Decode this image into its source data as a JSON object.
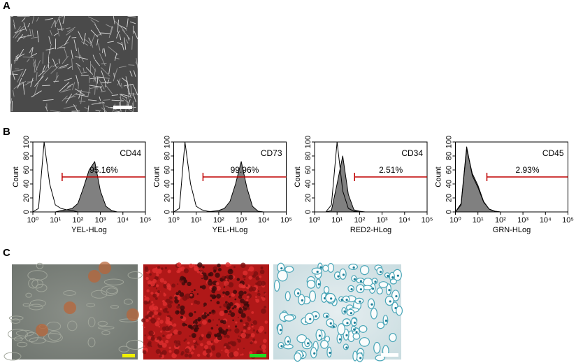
{
  "panel_labels": [
    "A",
    "B",
    "C"
  ],
  "chart_data": [
    {
      "type": "area",
      "label": "CD44",
      "xlabel": "YEL-HLog",
      "ylabel": "Count",
      "xscale": "log",
      "xlim": [
        1,
        100000
      ],
      "ylim": [
        0,
        100
      ],
      "xticks": [
        {
          "value": 1,
          "label": "10⁰"
        },
        {
          "value": 10,
          "label": "10¹"
        },
        {
          "value": 100,
          "label": "10²"
        },
        {
          "value": 1000,
          "label": "10³"
        },
        {
          "value": 10000,
          "label": "10⁴"
        },
        {
          "value": 100000,
          "label": "10⁵"
        }
      ],
      "yticks": [
        0,
        20,
        40,
        60,
        80,
        100
      ],
      "x": [
        1,
        1.78,
        3.16,
        5.62,
        10,
        17.8,
        31.6,
        56.2,
        100,
        178,
        316,
        562,
        1000,
        1778,
        3162,
        5623,
        10000,
        17800,
        31600,
        56200,
        100000
      ],
      "series": [
        {
          "color": "#808080",
          "values": [
            0,
            0,
            0,
            0,
            0,
            2,
            3,
            5,
            12,
            35,
            60,
            72,
            30,
            8,
            2,
            0,
            0,
            0,
            0,
            0,
            0
          ]
        },
        {
          "color": "none",
          "values": [
            0,
            5,
            100,
            40,
            10,
            5,
            3,
            2,
            0,
            0,
            0,
            0,
            0,
            0,
            0,
            0,
            0,
            0,
            0,
            0,
            0
          ]
        }
      ],
      "gate": {
        "value": 95.16,
        "label": "95.16%",
        "range": [
          20,
          100000
        ],
        "color": "#c00000"
      }
    },
    {
      "type": "area",
      "label": "CD73",
      "xlabel": "YEL-HLog",
      "ylabel": "Count",
      "xscale": "log",
      "xlim": [
        1,
        100000
      ],
      "ylim": [
        0,
        100
      ],
      "xticks": [
        {
          "value": 1,
          "label": "10⁰"
        },
        {
          "value": 10,
          "label": "10¹"
        },
        {
          "value": 100,
          "label": "10²"
        },
        {
          "value": 1000,
          "label": "10³"
        },
        {
          "value": 10000,
          "label": "10⁴"
        },
        {
          "value": 100000,
          "label": "10⁵"
        }
      ],
      "yticks": [
        0,
        20,
        40,
        60,
        80,
        100
      ],
      "x": [
        1,
        1.78,
        3.16,
        5.62,
        10,
        17.8,
        31.6,
        56.2,
        100,
        178,
        316,
        562,
        1000,
        1778,
        3162,
        5623,
        10000,
        17800,
        31600,
        56200,
        100000
      ],
      "series": [
        {
          "color": "#808080",
          "values": [
            0,
            0,
            0,
            0,
            0,
            0,
            0,
            1,
            2,
            5,
            15,
            40,
            72,
            35,
            8,
            1,
            0,
            0,
            0,
            0,
            0
          ]
        },
        {
          "color": "none",
          "values": [
            0,
            5,
            100,
            40,
            8,
            3,
            1,
            0,
            0,
            0,
            0,
            0,
            0,
            0,
            0,
            0,
            0,
            0,
            0,
            0,
            0
          ]
        }
      ],
      "gate": {
        "value": 99.96,
        "label": "99.96%",
        "range": [
          20,
          100000
        ],
        "color": "#c00000"
      }
    },
    {
      "type": "area",
      "label": "CD34",
      "xlabel": "RED2-HLog",
      "ylabel": "Count",
      "xscale": "log",
      "xlim": [
        1,
        100000
      ],
      "ylim": [
        0,
        100
      ],
      "xticks": [
        {
          "value": 1,
          "label": "10⁰"
        },
        {
          "value": 10,
          "label": "10¹"
        },
        {
          "value": 100,
          "label": "10²"
        },
        {
          "value": 1000,
          "label": "10³"
        },
        {
          "value": 10000,
          "label": "10⁴"
        },
        {
          "value": 100000,
          "label": "10⁵"
        }
      ],
      "yticks": [
        0,
        20,
        40,
        60,
        80,
        100
      ],
      "x": [
        1,
        1.78,
        3.16,
        5.62,
        10,
        17.8,
        31.6,
        56.2,
        100,
        178,
        316,
        562,
        1000,
        1778,
        3162,
        5623,
        10000,
        17800,
        31600,
        56200,
        100000
      ],
      "series": [
        {
          "color": "#808080",
          "values": [
            0,
            0,
            0,
            2,
            40,
            80,
            25,
            3,
            1,
            0,
            0,
            0,
            0,
            0,
            0,
            0,
            0,
            0,
            0,
            0,
            0
          ]
        },
        {
          "color": "none",
          "values": [
            0,
            0,
            0,
            10,
            100,
            30,
            5,
            1,
            0,
            0,
            0,
            0,
            0,
            0,
            0,
            0,
            0,
            0,
            0,
            0,
            0
          ]
        }
      ],
      "gate": {
        "value": 2.51,
        "label": "2.51%",
        "range": [
          60,
          100000
        ],
        "color": "#c00000"
      }
    },
    {
      "type": "area",
      "label": "CD45",
      "xlabel": "GRN-HLog",
      "ylabel": "Count",
      "xscale": "log",
      "xlim": [
        1,
        100000
      ],
      "ylim": [
        0,
        100
      ],
      "xticks": [
        {
          "value": 1,
          "label": "10⁰"
        },
        {
          "value": 10,
          "label": "10¹"
        },
        {
          "value": 100,
          "label": "10²"
        },
        {
          "value": 1000,
          "label": "10³"
        },
        {
          "value": 10000,
          "label": "10⁴"
        },
        {
          "value": 100000,
          "label": "10⁵"
        }
      ],
      "yticks": [
        0,
        20,
        40,
        60,
        80,
        100
      ],
      "x": [
        1,
        1.78,
        3.16,
        5.62,
        10,
        17.8,
        31.6,
        56.2,
        100,
        178,
        316,
        562,
        1000,
        1778,
        3162,
        5623,
        10000,
        17800,
        31600,
        56200,
        100000
      ],
      "series": [
        {
          "color": "#808080",
          "values": [
            0,
            10,
            90,
            55,
            38,
            15,
            4,
            1,
            0,
            0,
            0,
            0,
            0,
            0,
            0,
            0,
            0,
            0,
            0,
            0,
            0
          ]
        },
        {
          "color": "none",
          "values": [
            0,
            12,
            93,
            52,
            35,
            14,
            4,
            1,
            0,
            0,
            0,
            0,
            0,
            0,
            0,
            0,
            0,
            0,
            0,
            0,
            0
          ]
        }
      ],
      "gate": {
        "value": 2.93,
        "label": "2.93%",
        "range": [
          25,
          100000
        ],
        "color": "#c00000"
      }
    }
  ]
}
